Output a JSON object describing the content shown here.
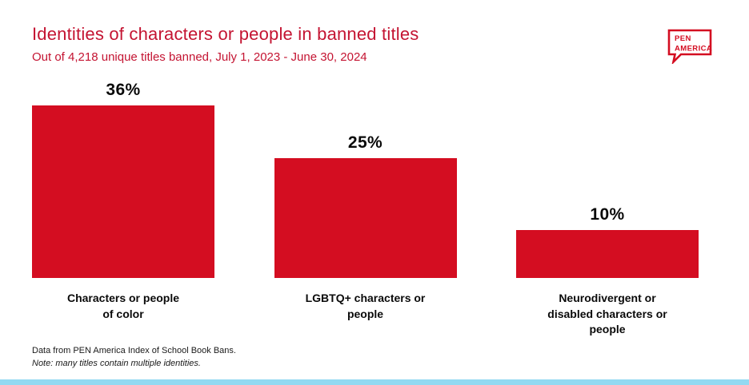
{
  "header": {
    "title": "Identities of characters or people in banned titles",
    "subtitle": "Out of 4,218 unique titles banned, July 1, 2023 - June 30, 2024"
  },
  "logo": {
    "line1": "PEN",
    "line2": "AMERICA"
  },
  "chart_data": {
    "type": "bar",
    "title": "Identities of characters or people in banned titles",
    "subtitle": "Out of 4,218 unique titles banned, July 1, 2023 - June 30, 2024",
    "categories": [
      "Characters or people of color",
      "LGBTQ+ characters or people",
      "Neurodivergent or disabled characters or people"
    ],
    "categories_display": [
      "Characters or people\nof color",
      "LGBTQ+ characters or\npeople",
      "Neurodivergent or\ndisabled characters or\npeople"
    ],
    "values": [
      36,
      25,
      10
    ],
    "value_labels": [
      "36%",
      "25%",
      "10%"
    ],
    "xlabel": "",
    "ylabel": "",
    "ylim": [
      0,
      40
    ],
    "grid": false,
    "legend": false,
    "bar_color": "#d40d21"
  },
  "footer": {
    "line1": "Data from PEN America Index of School Book Bans.",
    "line2": "Note: many titles contain multiple identities."
  },
  "colors": {
    "title_red": "#c41432",
    "bar_red": "#d40d21",
    "bottom_strip_blue": "#93d9f1"
  }
}
